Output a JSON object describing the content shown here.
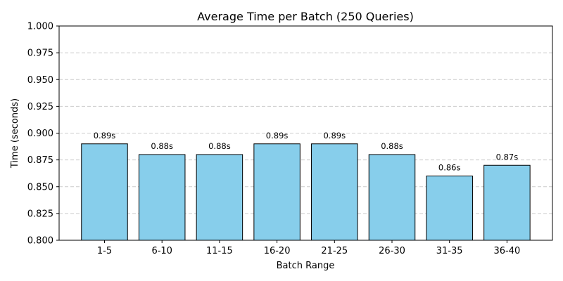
{
  "chart_data": {
    "type": "bar",
    "title": "Average Time per Batch (250 Queries)",
    "xlabel": "Batch Range",
    "ylabel": "Time (seconds)",
    "categories": [
      "1-5",
      "6-10",
      "11-15",
      "16-20",
      "21-25",
      "26-30",
      "31-35",
      "36-40"
    ],
    "values": [
      0.89,
      0.88,
      0.88,
      0.89,
      0.89,
      0.88,
      0.86,
      0.87
    ],
    "data_labels": [
      "0.89s",
      "0.88s",
      "0.88s",
      "0.89s",
      "0.89s",
      "0.88s",
      "0.86s",
      "0.87s"
    ],
    "ylim": [
      0.8,
      1.0
    ],
    "yticks": [
      0.8,
      0.825,
      0.85,
      0.875,
      0.9,
      0.925,
      0.95,
      0.975,
      1.0
    ],
    "ytick_labels": [
      "0.800",
      "0.825",
      "0.850",
      "0.875",
      "0.900",
      "0.925",
      "0.950",
      "0.975",
      "1.000"
    ],
    "grid": "y-dashed",
    "bar_color": "#87ceeb",
    "edge_color": "#000000"
  }
}
